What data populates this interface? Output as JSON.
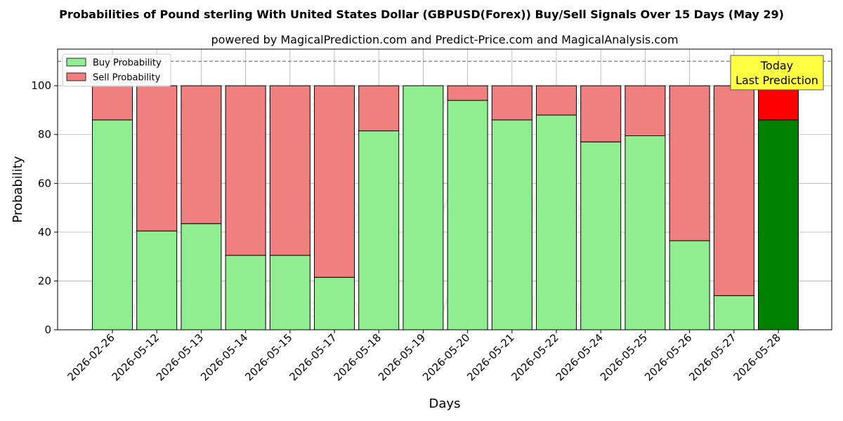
{
  "chart_data": {
    "type": "bar",
    "stacked": true,
    "title": "Probabilities of Pound sterling With United States Dollar (GBPUSD(Forex)) Buy/Sell Signals Over 15 Days (May 29)",
    "subtitle": "powered by MagicalPrediction.com and Predict-Price.com and MagicalAnalysis.com",
    "xlabel": "Days",
    "ylabel": "Probability",
    "ylim": [
      0,
      115
    ],
    "yticks": [
      0,
      20,
      40,
      60,
      80,
      100
    ],
    "grid": true,
    "legend_position": "top-left",
    "reference_line": 110,
    "categories": [
      "2026-02-26",
      "2026-05-12",
      "2026-05-13",
      "2026-05-14",
      "2026-05-15",
      "2026-05-17",
      "2026-05-18",
      "2026-05-19",
      "2026-05-20",
      "2026-05-21",
      "2026-05-22",
      "2026-05-24",
      "2026-05-25",
      "2026-05-26",
      "2026-05-27",
      "2026-05-28"
    ],
    "series": [
      {
        "name": "Buy Probability",
        "color": "#90ee90",
        "highlight_color": "#008000",
        "values": [
          86,
          40.5,
          43.5,
          30.5,
          30.5,
          21.5,
          81.5,
          100,
          94,
          86,
          88,
          77,
          79.5,
          36.5,
          14,
          86
        ]
      },
      {
        "name": "Sell Probability",
        "color": "#f08080",
        "highlight_color": "#ff0000",
        "values": [
          14,
          59.5,
          56.5,
          69.5,
          69.5,
          78.5,
          18.5,
          0,
          6,
          14,
          12,
          23,
          20.5,
          63.5,
          86,
          14
        ]
      }
    ],
    "highlight_index": 15,
    "annotation": {
      "lines": [
        "Today",
        "Last Prediction"
      ],
      "color": "#ffff44"
    },
    "watermarks": [
      "MagicalAnalysis.com",
      "MagicalPrediction.com"
    ]
  }
}
